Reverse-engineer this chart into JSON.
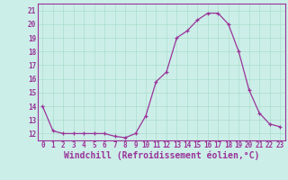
{
  "x": [
    0,
    1,
    2,
    3,
    4,
    5,
    6,
    7,
    8,
    9,
    10,
    11,
    12,
    13,
    14,
    15,
    16,
    17,
    18,
    19,
    20,
    21,
    22,
    23
  ],
  "y": [
    14,
    12.2,
    12.0,
    12.0,
    12.0,
    12.0,
    12.0,
    11.8,
    11.7,
    12.0,
    13.3,
    15.8,
    16.5,
    19.0,
    19.5,
    20.3,
    20.8,
    20.8,
    20.0,
    18.0,
    15.2,
    13.5,
    12.7,
    12.5
  ],
  "line_color": "#993399",
  "marker": "+",
  "marker_size": 3,
  "bg_color": "#cceee8",
  "grid_color": "#aaddcc",
  "xlabel": "Windchill (Refroidissement éolien,°C)",
  "xlabel_color": "#993399",
  "ylim": [
    11.5,
    21.5
  ],
  "xlim": [
    -0.5,
    23.5
  ],
  "yticks": [
    12,
    13,
    14,
    15,
    16,
    17,
    18,
    19,
    20,
    21
  ],
  "xticks": [
    0,
    1,
    2,
    3,
    4,
    5,
    6,
    7,
    8,
    9,
    10,
    11,
    12,
    13,
    14,
    15,
    16,
    17,
    18,
    19,
    20,
    21,
    22,
    23
  ],
  "tick_color": "#993399",
  "tick_fontsize": 5.5,
  "xlabel_fontsize": 7.0,
  "spine_color": "#993399",
  "linewidth": 0.9,
  "markeredgewidth": 0.9
}
